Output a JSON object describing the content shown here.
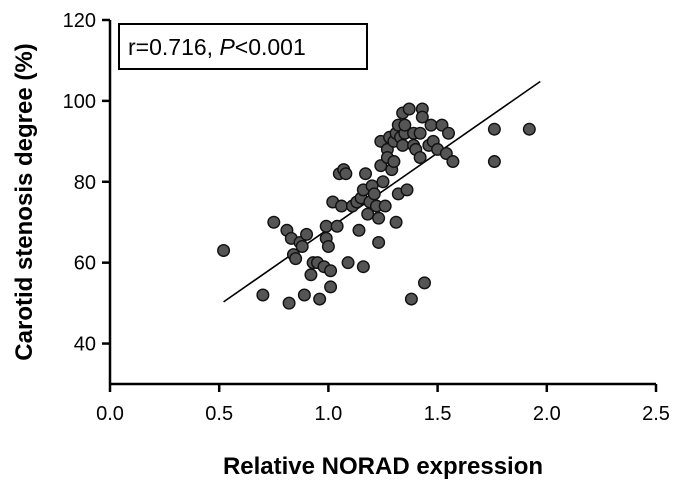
{
  "chart_data": {
    "type": "scatter",
    "xlabel": "Relative NORAD expression",
    "ylabel": "Carotid stenosis degree (%)",
    "xlim": [
      0.0,
      2.5
    ],
    "ylim": [
      30,
      120
    ],
    "x_ticks": [
      "0.0",
      "0.5",
      "1.0",
      "1.5",
      "2.0",
      "2.5"
    ],
    "y_ticks": [
      "40",
      "60",
      "80",
      "100",
      "120"
    ],
    "annotation": {
      "prefix": "r=0.716, ",
      "p_symbol": "P",
      "suffix": "<0.001"
    },
    "regression": {
      "x": [
        0.52,
        1.97
      ],
      "y": [
        50.3,
        104.8
      ]
    },
    "points": [
      {
        "x": 0.52,
        "y": 63
      },
      {
        "x": 0.7,
        "y": 52
      },
      {
        "x": 0.75,
        "y": 70
      },
      {
        "x": 0.81,
        "y": 68
      },
      {
        "x": 0.82,
        "y": 50
      },
      {
        "x": 0.83,
        "y": 66
      },
      {
        "x": 0.84,
        "y": 62
      },
      {
        "x": 0.85,
        "y": 61
      },
      {
        "x": 0.87,
        "y": 65
      },
      {
        "x": 0.88,
        "y": 64
      },
      {
        "x": 0.89,
        "y": 52
      },
      {
        "x": 0.9,
        "y": 67
      },
      {
        "x": 0.92,
        "y": 57
      },
      {
        "x": 0.93,
        "y": 60
      },
      {
        "x": 0.95,
        "y": 60
      },
      {
        "x": 0.96,
        "y": 51
      },
      {
        "x": 0.98,
        "y": 59
      },
      {
        "x": 0.99,
        "y": 66
      },
      {
        "x": 0.99,
        "y": 69
      },
      {
        "x": 1.0,
        "y": 64
      },
      {
        "x": 1.01,
        "y": 54
      },
      {
        "x": 1.01,
        "y": 58
      },
      {
        "x": 1.02,
        "y": 75
      },
      {
        "x": 1.04,
        "y": 69
      },
      {
        "x": 1.05,
        "y": 82
      },
      {
        "x": 1.06,
        "y": 74
      },
      {
        "x": 1.07,
        "y": 83
      },
      {
        "x": 1.08,
        "y": 82
      },
      {
        "x": 1.09,
        "y": 60
      },
      {
        "x": 1.11,
        "y": 74
      },
      {
        "x": 1.13,
        "y": 75
      },
      {
        "x": 1.14,
        "y": 68
      },
      {
        "x": 1.15,
        "y": 76
      },
      {
        "x": 1.16,
        "y": 59
      },
      {
        "x": 1.16,
        "y": 78
      },
      {
        "x": 1.17,
        "y": 82
      },
      {
        "x": 1.18,
        "y": 72
      },
      {
        "x": 1.19,
        "y": 75
      },
      {
        "x": 1.2,
        "y": 79
      },
      {
        "x": 1.21,
        "y": 77
      },
      {
        "x": 1.22,
        "y": 74
      },
      {
        "x": 1.23,
        "y": 65
      },
      {
        "x": 1.23,
        "y": 71
      },
      {
        "x": 1.24,
        "y": 84
      },
      {
        "x": 1.24,
        "y": 90
      },
      {
        "x": 1.25,
        "y": 80
      },
      {
        "x": 1.26,
        "y": 74
      },
      {
        "x": 1.27,
        "y": 88
      },
      {
        "x": 1.27,
        "y": 86
      },
      {
        "x": 1.28,
        "y": 91
      },
      {
        "x": 1.29,
        "y": 83
      },
      {
        "x": 1.3,
        "y": 85
      },
      {
        "x": 1.3,
        "y": 90
      },
      {
        "x": 1.31,
        "y": 92
      },
      {
        "x": 1.31,
        "y": 70
      },
      {
        "x": 1.32,
        "y": 77
      },
      {
        "x": 1.32,
        "y": 94
      },
      {
        "x": 1.33,
        "y": 91
      },
      {
        "x": 1.34,
        "y": 89
      },
      {
        "x": 1.34,
        "y": 97
      },
      {
        "x": 1.35,
        "y": 92
      },
      {
        "x": 1.35,
        "y": 94
      },
      {
        "x": 1.36,
        "y": 78
      },
      {
        "x": 1.37,
        "y": 98
      },
      {
        "x": 1.38,
        "y": 51
      },
      {
        "x": 1.39,
        "y": 92
      },
      {
        "x": 1.39,
        "y": 89
      },
      {
        "x": 1.4,
        "y": 88
      },
      {
        "x": 1.42,
        "y": 92
      },
      {
        "x": 1.42,
        "y": 86
      },
      {
        "x": 1.43,
        "y": 98
      },
      {
        "x": 1.43,
        "y": 96
      },
      {
        "x": 1.44,
        "y": 55
      },
      {
        "x": 1.46,
        "y": 89
      },
      {
        "x": 1.47,
        "y": 94
      },
      {
        "x": 1.48,
        "y": 90
      },
      {
        "x": 1.5,
        "y": 88
      },
      {
        "x": 1.52,
        "y": 94
      },
      {
        "x": 1.54,
        "y": 87
      },
      {
        "x": 1.55,
        "y": 92
      },
      {
        "x": 1.57,
        "y": 85
      },
      {
        "x": 1.76,
        "y": 93
      },
      {
        "x": 1.76,
        "y": 85
      },
      {
        "x": 1.92,
        "y": 93
      }
    ]
  }
}
